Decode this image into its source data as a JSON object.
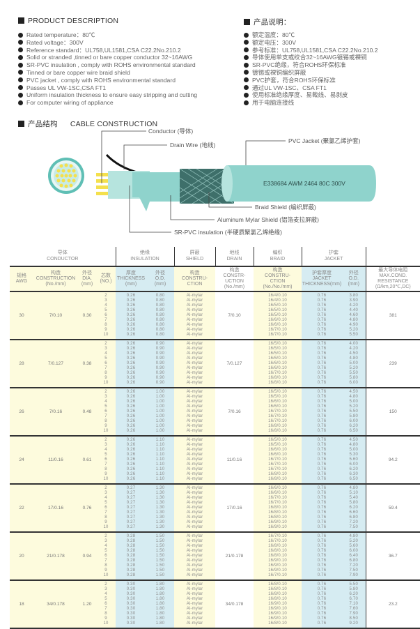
{
  "description": {
    "en_title": "PRODUCT DESCRIPTION",
    "cn_title": "产品说明：",
    "en_items": [
      "Rated temperature：80℃",
      "Rated voltage：300V",
      "Reference standard：UL758,UL1581,CSA C22.2No.210.2",
      "Solid or stranded ,tinned or bare copper conductor 32~16AWG",
      "SR-PVC insulation , comply with ROHS environmental standard",
      "Tinned or bare copper wire braid shield",
      "PVC jacket , comply with ROHS environmental standard",
      "Passes UL VW-1SC,CSA FT1",
      "Uniform insulation thickness to ensure easy stripping and cutting",
      "For computer wiring of appliance"
    ],
    "cn_items": [
      "额定温度：80℃",
      "额定电压：300V",
      "参考标准：UL758,UL1581,CSA C22.2No.210.2",
      "导体使用单支或绞合32~16AWG镀锡或裸铜",
      "SR-PVC绝缘，符合ROHS环保标准",
      "镀锡或裸铜编织屏蔽",
      "PVC护套，符合ROHS环保标准",
      "通过UL VW-1SC、CSA FT1",
      "使用标准绝缘厚度、易裁线、易剥皮",
      "用于电脑连接线"
    ]
  },
  "construction": {
    "cn_title": "产品结构",
    "en_title": "CABLE CONSTRUCTION",
    "labels": {
      "conductor": "Conductor (导体)",
      "drain": "Drain Wire (地线)",
      "jacket": "PVC Jacket (聚氯乙烯护套)",
      "braid": "Braid Shield (编织屏蔽)",
      "mylar": "Aluminum Mylar Shield (铝箔麦拉屏蔽)",
      "insulation": "SR-PVC insulation (半硬质聚氯乙烯绝缘)"
    },
    "marking": "E338684  AWM 2464 80C 300V",
    "colors": {
      "cable": "#8fd3cc",
      "conductor": "#f4e04d",
      "braid": "#3e6f6a"
    }
  },
  "table": {
    "groups": {
      "conductor": "导体\nCONDUCTOR",
      "insulation": "绝缘\nINSULATION",
      "shield": "屏蔽\nSHIELD",
      "drain": "地线\nDRAIN",
      "braid": "编织\nBRAID",
      "jacket": "护套\nJACKET"
    },
    "headers": {
      "awg": "规格\nAWG",
      "construction": "构造\nCONSTRUCTION\n(No./mm)",
      "dia": "外径\nDIA.\n(mm)",
      "cores": "芯数\n(NO.)",
      "ins_thk": "厚度\nTHICKNESS\n(mm)",
      "ins_od": "外径\nO.D.\n(mm)",
      "shield": "构造\nCONSTRU-\nCTION",
      "drain": "构造\nCONSTR-\nUCTION\n(No./mm)",
      "braid": "构造\nCONSTRU-\nCTION\n(No./No./mm)",
      "jk_thk": "护套厚度\nJACKET\nTHICKNESS(mm)",
      "jk_od": "外径\nO.D.\n(mm)",
      "resistance": "最大导体电阻\nMAX.COND.\nRESISTANCE\n(Ω/km,20℃,DC)"
    },
    "cores": [
      "2",
      "3",
      "4",
      "5",
      "6",
      "7",
      "8",
      "9",
      "10"
    ],
    "rows": [
      {
        "awg": "30",
        "construction": "7/0.10",
        "dia": "0.30",
        "ins_thk": "0.26",
        "ins_od": "0.80",
        "shield": "Al-mylar",
        "drain": "7/0.10",
        "braid": [
          "16/4/0.10",
          "16/4/0.10",
          "16/5/0.10",
          "16/5/0.10",
          "16/5/0.10",
          "16/6/0.10",
          "16/6/0.10",
          "16/7/0.10",
          "16/7/0.10"
        ],
        "jk_thk": "0.76",
        "jk_od": [
          "3.80",
          "3.90",
          "4.20",
          "4.40",
          "4.60",
          "4.80",
          "4.90",
          "5.20",
          "5.50"
        ],
        "resistance": "381"
      },
      {
        "awg": "28",
        "construction": "7/0.127",
        "dia": "0.38",
        "ins_thk": "0.26",
        "ins_od": "0.90",
        "shield": "Al-mylar",
        "drain": "7/0.127",
        "braid": [
          "16/5/0.10",
          "16/5/0.10",
          "16/5/0.10",
          "16/6/0.10",
          "16/6/0.10",
          "16/6/0.10",
          "16/7/0.10",
          "16/8/0.10",
          "16/8/0.10"
        ],
        "jk_thk": "0.76",
        "jk_od": [
          "4.00",
          "4.20",
          "4.50",
          "4.80",
          "5.00",
          "5.20",
          "5.50",
          "5.80",
          "6.00"
        ],
        "resistance": "239"
      },
      {
        "awg": "26",
        "construction": "7/0.16",
        "dia": "0.48",
        "ins_thk": "0.26",
        "ins_od": "1.00",
        "shield": "Al-mylar",
        "drain": "7/0.16",
        "braid": [
          "16/5/0.10",
          "16/5/0.10",
          "16/6/0.10",
          "16/6/0.10",
          "16/7/0.10",
          "16/7/0.10",
          "16/7/0.10",
          "16/8/0.10",
          "16/8/0.10"
        ],
        "jk_thk": "0.76",
        "jk_od": [
          "4.50",
          "4.80",
          "5.00",
          "5.20",
          "5.50",
          "5.80",
          "6.00",
          "6.20",
          "6.50"
        ],
        "resistance": "150"
      },
      {
        "awg": "24",
        "construction": "11/0.16",
        "dia": "0.61",
        "ins_thk": "0.26",
        "ins_od": "1.10",
        "shield": "Al-mylar",
        "drain": "11/0.16",
        "braid": [
          "16/5/0.10",
          "16/5/0.10",
          "16/6/0.10",
          "16/6/0.10",
          "16/7/0.10",
          "16/7/0.10",
          "16/7/0.10",
          "16/8/0.10",
          "16/8/0.10"
        ],
        "jk_thk": "0.76",
        "jk_od": [
          "4.50",
          "4.80",
          "5.00",
          "5.30",
          "5.60",
          "6.00",
          "6.20",
          "6.30",
          "6.50"
        ],
        "resistance": "94.2"
      },
      {
        "awg": "22",
        "construction": "17/0.16",
        "dia": "0.76",
        "ins_thk": "0.27",
        "ins_od": "1.30",
        "shield": "Al-mylar",
        "drain": "17/0.16",
        "braid": [
          "16/6/0.10",
          "16/6/0.10",
          "16/7/0.10",
          "16/7/0.10",
          "16/8/0.10",
          "16/8/0.10",
          "16/8/0.10",
          "16/9/0.10",
          "16/9/0.10"
        ],
        "jk_thk": "0.76",
        "jk_od": [
          "4.80",
          "5.10",
          "5.40",
          "5.80",
          "6.20",
          "6.60",
          "6.80",
          "7.20",
          "7.50"
        ],
        "resistance": "59.4"
      },
      {
        "awg": "20",
        "construction": "21/0.178",
        "dia": "0.94",
        "ins_thk": "0.28",
        "ins_od": "1.50",
        "shield": "Al-mylar",
        "drain": "21/0.178",
        "braid": [
          "16/7/0.10",
          "16/7/0.10",
          "16/8/0.10",
          "16/8/0.10",
          "16/8/0.10",
          "16/9/0.10",
          "16/9/0.10",
          "16/9/0.10",
          "16/7/0.10"
        ],
        "jk_thk": "0.76",
        "jk_od": [
          "4.80",
          "5.20",
          "5.60",
          "6.00",
          "6.40",
          "6.80",
          "7.20",
          "7.50",
          "7.90"
        ],
        "resistance": "36.7"
      },
      {
        "awg": "18",
        "construction": "34/0.178",
        "dia": "1.20",
        "ins_thk": "0.30",
        "ins_od": "1.80",
        "shield": "Al-mylar",
        "drain": "34/0.178",
        "braid": [
          "16/8/0.10",
          "16/8/0.10",
          "16/8/0.10",
          "16/8/0.10",
          "16/9/0.10",
          "16/9/0.10",
          "16/9/0.10",
          "16/9/0.10",
          "16/8/0.10"
        ],
        "jk_thk": "0.76",
        "jk_od": [
          "5.50",
          "5.80",
          "6.20",
          "6.70",
          "7.10",
          "7.60",
          "7.90",
          "8.50",
          "9.20"
        ],
        "resistance": "23.2"
      }
    ]
  }
}
